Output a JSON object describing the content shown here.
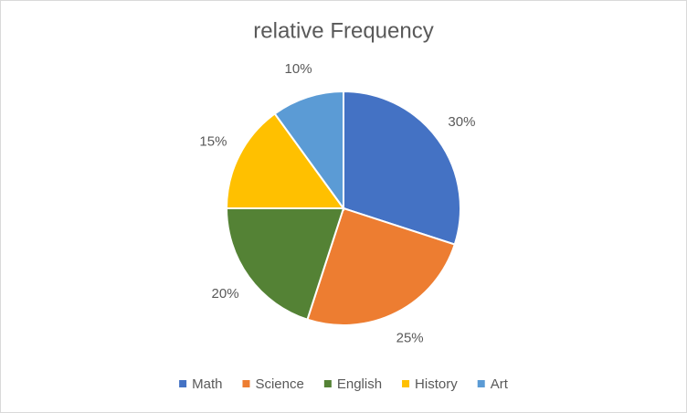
{
  "chart_data": {
    "type": "pie",
    "title": "relative Frequency",
    "categories": [
      "Math",
      "Science",
      "English",
      "History",
      "Art"
    ],
    "values": [
      30,
      25,
      20,
      15,
      10
    ],
    "value_labels": [
      "30%",
      "25%",
      "20%",
      "15%",
      "10%"
    ],
    "colors": [
      "#4472c4",
      "#ed7d31",
      "#548235",
      "#ffc000",
      "#5b9bd5"
    ],
    "legend": "bottom"
  }
}
